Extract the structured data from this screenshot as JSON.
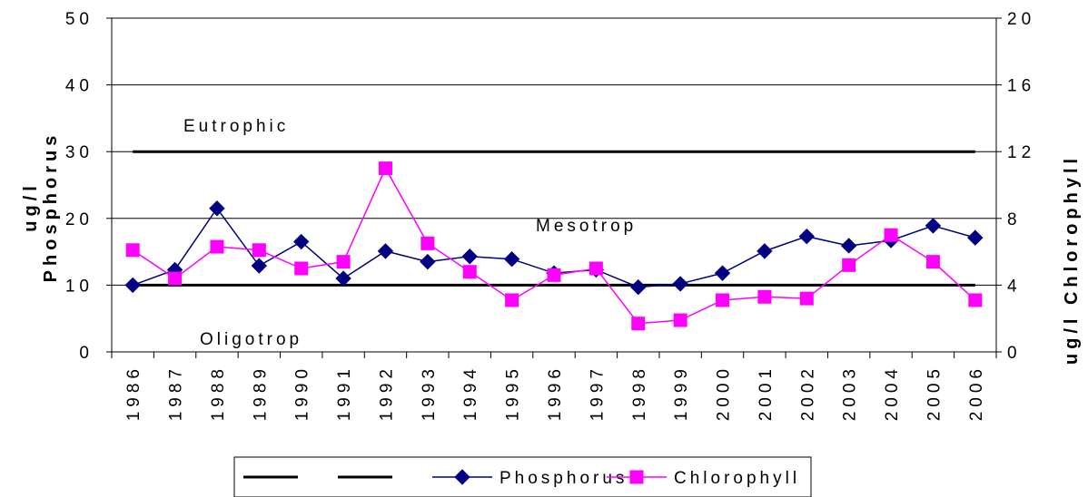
{
  "chart_data": {
    "type": "line",
    "categories": [
      "1986",
      "1987",
      "1988",
      "1989",
      "1990",
      "1991",
      "1992",
      "1993",
      "1994",
      "1995",
      "1996",
      "1997",
      "1998",
      "1999",
      "2000",
      "2001",
      "2002",
      "2003",
      "2004",
      "2005",
      "2006"
    ],
    "y_left": {
      "title_line1": "ug/l",
      "title_line2": "Phosphorus",
      "ylim": [
        0,
        50
      ],
      "ticks": [
        "0",
        "10",
        "20",
        "30",
        "40",
        "50"
      ]
    },
    "y_right": {
      "title": "ug/l Chlorophyll",
      "ylim": [
        0,
        20
      ],
      "ticks": [
        "0",
        "4",
        "8",
        "12",
        "16",
        "20"
      ]
    },
    "series": [
      {
        "name": "Phosphorus",
        "axis": "left",
        "color": "#000080",
        "marker": "diamond",
        "values": [
          10,
          12.3,
          21.5,
          12.9,
          16.5,
          11,
          15.1,
          13.5,
          14.3,
          13.9,
          11.8,
          12.3,
          9.7,
          10.2,
          11.8,
          15.1,
          17.3,
          15.9,
          16.7,
          18.9,
          17.1
        ]
      },
      {
        "name": "Chlorophyll",
        "axis": "right",
        "color": "#FF00FF",
        "marker": "square",
        "values": [
          6.1,
          4.4,
          6.3,
          6.1,
          5.0,
          5.4,
          11.0,
          6.5,
          4.8,
          3.1,
          4.6,
          5.0,
          1.7,
          1.9,
          3.1,
          3.3,
          3.2,
          5.2,
          7.0,
          5.4,
          3.1
        ]
      }
    ],
    "reference_lines": [
      {
        "axis": "left",
        "value": 30,
        "color": "#000000"
      },
      {
        "axis": "left",
        "value": 10,
        "color": "#000000"
      }
    ],
    "zone_labels": [
      {
        "text": "Eutrophic"
      },
      {
        "text": "Mesotrop"
      },
      {
        "text": "Oligotrop"
      }
    ],
    "grid": true,
    "legend": {
      "placement": "bottom",
      "entries": [
        {
          "label": "",
          "style": "reference-line"
        },
        {
          "label": "",
          "style": "reference-line"
        },
        {
          "label": "Phosphorus",
          "style": "Phosphorus"
        },
        {
          "label": "Chlorophyll",
          "style": "Chlorophyll"
        }
      ]
    }
  }
}
